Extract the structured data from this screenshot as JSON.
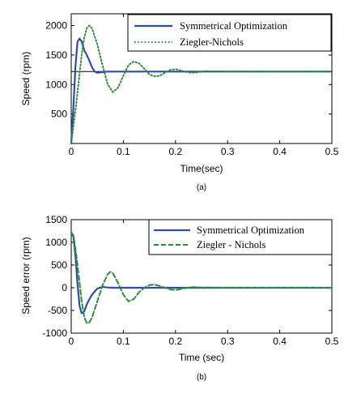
{
  "chart_data": [
    {
      "type": "line",
      "xlabel": "Time(sec)",
      "ylabel": "Speed (rpm)",
      "caption": "(a)",
      "xlim": [
        0,
        0.5
      ],
      "ylim": [
        0,
        2200
      ],
      "xticks": [
        "0",
        "0.1",
        "0.2",
        "0.3",
        "0.4",
        "0.5"
      ],
      "yticks": [
        "500",
        "1000",
        "1500",
        "2000"
      ],
      "legend_position": "top-right",
      "reference_line": 1220,
      "series": [
        {
          "name": "Symmetrical Optimization",
          "color": "#2e4f9e",
          "style": "solid",
          "x": [
            0,
            0.004,
            0.008,
            0.012,
            0.016,
            0.02,
            0.025,
            0.03,
            0.035,
            0.04,
            0.045,
            0.05,
            0.06,
            0.07,
            0.08,
            0.1,
            0.15,
            0.2,
            0.3,
            0.4,
            0.5
          ],
          "y": [
            0,
            600,
            1300,
            1720,
            1780,
            1730,
            1580,
            1500,
            1400,
            1290,
            1220,
            1200,
            1210,
            1220,
            1220,
            1220,
            1220,
            1220,
            1220,
            1220,
            1220
          ]
        },
        {
          "name": "Ziegler-Nichols",
          "color": "#2f8a3e",
          "style": "dotted",
          "x": [
            0,
            0.01,
            0.02,
            0.025,
            0.03,
            0.035,
            0.04,
            0.05,
            0.06,
            0.07,
            0.08,
            0.09,
            0.1,
            0.11,
            0.12,
            0.13,
            0.14,
            0.15,
            0.16,
            0.17,
            0.18,
            0.19,
            0.2,
            0.21,
            0.22,
            0.23,
            0.24,
            0.25,
            0.26,
            0.27,
            0.3,
            0.35,
            0.4,
            0.5
          ],
          "y": [
            0,
            700,
            1500,
            1800,
            1960,
            2000,
            1950,
            1680,
            1330,
            1000,
            870,
            950,
            1150,
            1330,
            1390,
            1360,
            1270,
            1170,
            1140,
            1150,
            1200,
            1250,
            1260,
            1240,
            1215,
            1200,
            1205,
            1220,
            1228,
            1225,
            1220,
            1220,
            1220,
            1220
          ]
        }
      ]
    },
    {
      "type": "line",
      "xlabel": "Time (sec)",
      "ylabel": "Speed error (rpm)",
      "caption": "(b)",
      "xlim": [
        0,
        0.5
      ],
      "ylim": [
        -1000,
        1500
      ],
      "xticks": [
        "0",
        "0.1",
        "0.2",
        "0.3",
        "0.4",
        "0.5"
      ],
      "yticks": [
        "-1000",
        "-500",
        "0",
        "500",
        "1000",
        "1500"
      ],
      "legend_position": "top-right",
      "series": [
        {
          "name": "Symmetrical Optimization",
          "color": "#2e4f9e",
          "style": "solid",
          "x": [
            0,
            0.004,
            0.008,
            0.012,
            0.016,
            0.02,
            0.025,
            0.03,
            0.035,
            0.04,
            0.045,
            0.05,
            0.06,
            0.07,
            0.08,
            0.1,
            0.2,
            0.3,
            0.5
          ],
          "y": [
            1220,
            1150,
            700,
            100,
            -400,
            -560,
            -520,
            -360,
            -250,
            -150,
            -80,
            -20,
            20,
            5,
            0,
            0,
            0,
            0,
            0
          ]
        },
        {
          "name": "Ziegler - Nichols",
          "color": "#2f8a3e",
          "style": "dashed",
          "x": [
            0,
            0.005,
            0.01,
            0.015,
            0.02,
            0.025,
            0.03,
            0.035,
            0.04,
            0.05,
            0.06,
            0.07,
            0.075,
            0.08,
            0.09,
            0.1,
            0.11,
            0.12,
            0.13,
            0.14,
            0.15,
            0.16,
            0.17,
            0.18,
            0.19,
            0.2,
            0.21,
            0.22,
            0.23,
            0.24,
            0.25,
            0.3,
            0.4,
            0.5
          ],
          "y": [
            1220,
            1100,
            700,
            200,
            -300,
            -650,
            -780,
            -760,
            -650,
            -300,
            50,
            300,
            350,
            320,
            100,
            -150,
            -300,
            -250,
            -100,
            0,
            60,
            70,
            40,
            0,
            -40,
            -50,
            -30,
            -5,
            10,
            15,
            5,
            0,
            0,
            0
          ]
        }
      ]
    }
  ]
}
